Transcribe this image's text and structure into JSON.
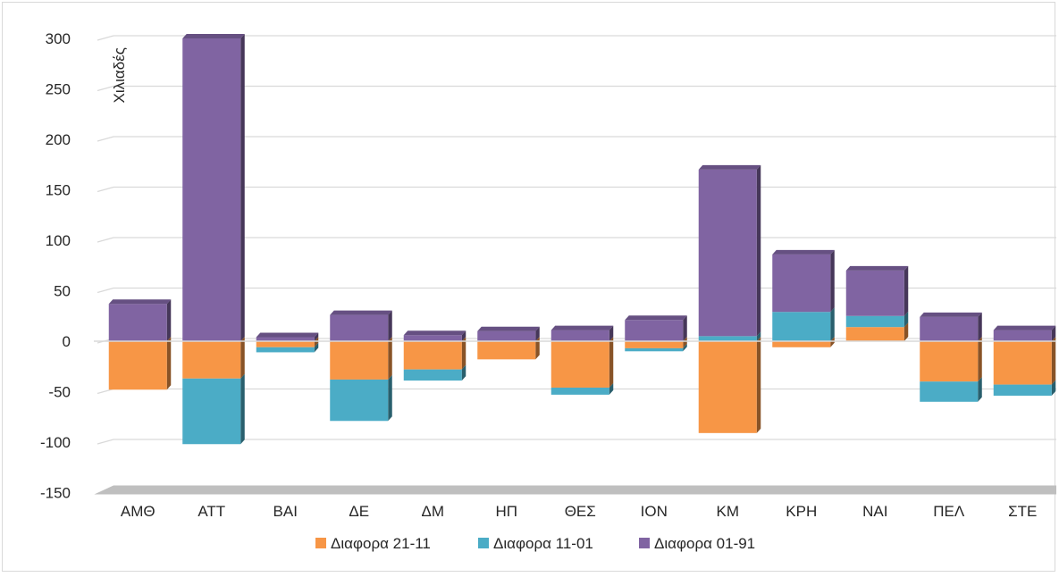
{
  "chart_data": {
    "type": "bar",
    "stacked": true,
    "style": "3d",
    "title": "",
    "xlabel": "",
    "ylabel": "Χιλιαδές",
    "ylim": [
      -150,
      300
    ],
    "yticks": [
      -150,
      -100,
      -50,
      0,
      50,
      100,
      150,
      200,
      250,
      300
    ],
    "grid": true,
    "legend_position": "bottom",
    "categories": [
      "ΑΜΘ",
      "ΑΤΤ",
      "ΒΑΙ",
      "ΔΕ",
      "ΔΜ",
      "ΗΠ",
      "ΘΕΣ",
      "ΙΟΝ",
      "ΚΜ",
      "ΚΡΗ",
      "ΝΑΙ",
      "ΠΕΛ",
      "ΣΤΕ"
    ],
    "series": [
      {
        "name": "Διαφορα 21-11",
        "color": "#f79646",
        "values": [
          -48,
          -37,
          -6,
          -38,
          -28,
          -18,
          -46,
          -7,
          -91,
          -6,
          14,
          -40,
          -43
        ]
      },
      {
        "name": "Διαφορα 11-01",
        "color": "#4bacc6",
        "values": [
          0,
          -65,
          -5,
          -41,
          -11,
          0,
          -7,
          -3,
          5,
          29,
          11,
          -20,
          -11
        ]
      },
      {
        "name": "Διαφορα 01-91",
        "color": "#8064a2",
        "values": [
          37,
          300,
          4,
          26,
          6,
          10,
          11,
          21,
          165,
          57,
          45,
          24,
          11
        ]
      }
    ]
  }
}
